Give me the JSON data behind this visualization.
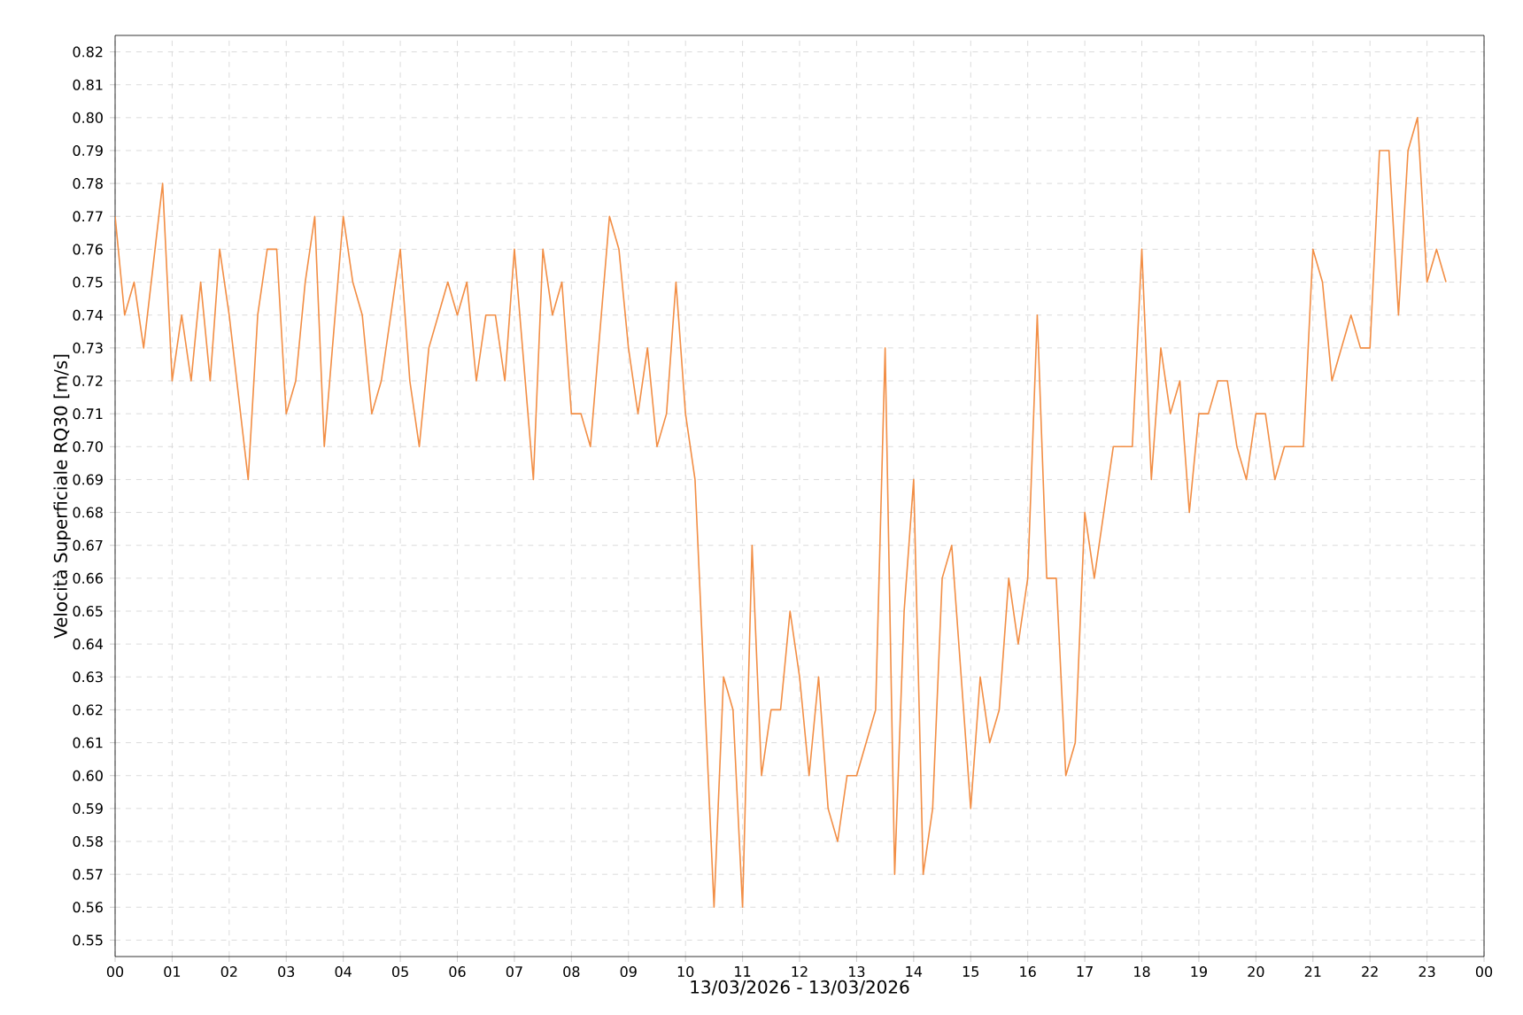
{
  "chart_data": {
    "type": "line",
    "xlabel": "13/03/2026 - 13/03/2026",
    "ylabel": "Velocità Superficiale RQ30 [m/s]",
    "xlim": [
      0,
      24
    ],
    "ylim": [
      0.545,
      0.825
    ],
    "xticks": [
      {
        "value": 0,
        "label": "00"
      },
      {
        "value": 1,
        "label": "01"
      },
      {
        "value": 2,
        "label": "02"
      },
      {
        "value": 3,
        "label": "03"
      },
      {
        "value": 4,
        "label": "04"
      },
      {
        "value": 5,
        "label": "05"
      },
      {
        "value": 6,
        "label": "06"
      },
      {
        "value": 7,
        "label": "07"
      },
      {
        "value": 8,
        "label": "08"
      },
      {
        "value": 9,
        "label": "09"
      },
      {
        "value": 10,
        "label": "10"
      },
      {
        "value": 11,
        "label": "11"
      },
      {
        "value": 12,
        "label": "12"
      },
      {
        "value": 13,
        "label": "13"
      },
      {
        "value": 14,
        "label": "14"
      },
      {
        "value": 15,
        "label": "15"
      },
      {
        "value": 16,
        "label": "16"
      },
      {
        "value": 17,
        "label": "17"
      },
      {
        "value": 18,
        "label": "18"
      },
      {
        "value": 19,
        "label": "19"
      },
      {
        "value": 20,
        "label": "20"
      },
      {
        "value": 21,
        "label": "21"
      },
      {
        "value": 22,
        "label": "22"
      },
      {
        "value": 23,
        "label": "23"
      },
      {
        "value": 24,
        "label": "00"
      }
    ],
    "yticks": [
      0.55,
      0.56,
      0.57,
      0.58,
      0.59,
      {
        "value": 0.6,
        "label": "0.60"
      },
      0.61,
      0.62,
      0.63,
      0.64,
      0.65,
      0.66,
      0.67,
      0.68,
      0.69,
      {
        "value": 0.7,
        "label": "0.70"
      },
      0.71,
      0.72,
      0.73,
      0.74,
      0.75,
      0.76,
      0.77,
      0.78,
      0.79,
      {
        "value": 0.8,
        "label": "0.80"
      },
      0.81,
      0.82
    ],
    "grid": true,
    "marker": "none",
    "line_style": "solid",
    "series": [
      {
        "color": "#f28e45",
        "x": [
          0,
          0.167,
          0.333,
          0.5,
          0.833,
          1,
          1.167,
          1.333,
          1.5,
          1.667,
          1.833,
          2,
          2.333,
          2.5,
          2.667,
          2.833,
          3,
          3.167,
          3.333,
          3.5,
          3.667,
          4,
          4.167,
          4.333,
          4.5,
          4.667,
          5,
          5.167,
          5.333,
          5.5,
          5.667,
          5.833,
          6,
          6.167,
          6.333,
          6.5,
          6.667,
          6.833,
          7,
          7.333,
          7.5,
          7.667,
          7.833,
          8,
          8.167,
          8.333,
          8.667,
          8.833,
          9,
          9.167,
          9.333,
          9.5,
          9.667,
          9.833,
          10,
          10.167,
          10.5,
          10.667,
          10.833,
          11,
          11.167,
          11.333,
          11.5,
          11.667,
          11.833,
          12,
          12.167,
          12.333,
          12.5,
          12.667,
          12.833,
          13,
          13.333,
          13.5,
          13.667,
          13.833,
          14,
          14.167,
          14.333,
          14.5,
          14.667,
          15,
          15.167,
          15.333,
          15.5,
          15.667,
          15.833,
          16,
          16.167,
          16.333,
          16.5,
          16.667,
          16.833,
          17,
          17.167,
          17.5,
          17.667,
          17.833,
          18,
          18.167,
          18.333,
          18.5,
          18.667,
          18.833,
          19,
          19.167,
          19.333,
          19.5,
          19.667,
          19.833,
          20,
          20.167,
          20.333,
          20.5,
          20.667,
          20.833,
          21,
          21.167,
          21.333,
          21.667,
          21.833,
          22,
          22.167,
          22.333,
          22.5,
          22.667,
          22.833,
          23,
          23.167,
          23.333
        ],
        "values": [
          0.77,
          0.74,
          0.75,
          0.73,
          0.78,
          0.72,
          0.74,
          0.72,
          0.75,
          0.72,
          0.76,
          0.74,
          0.69,
          0.74,
          0.76,
          0.76,
          0.71,
          0.72,
          0.75,
          0.77,
          0.7,
          0.77,
          0.75,
          0.74,
          0.71,
          0.72,
          0.76,
          0.72,
          0.7,
          0.73,
          0.74,
          0.75,
          0.74,
          0.75,
          0.72,
          0.74,
          0.74,
          0.72,
          0.76,
          0.69,
          0.76,
          0.74,
          0.75,
          0.71,
          0.71,
          0.7,
          0.77,
          0.76,
          0.73,
          0.71,
          0.73,
          0.7,
          0.71,
          0.75,
          0.71,
          0.69,
          0.56,
          0.63,
          0.62,
          0.56,
          0.67,
          0.6,
          0.62,
          0.62,
          0.65,
          0.63,
          0.6,
          0.63,
          0.59,
          0.58,
          0.6,
          0.6,
          0.62,
          0.73,
          0.57,
          0.65,
          0.69,
          0.57,
          0.59,
          0.66,
          0.67,
          0.59,
          0.63,
          0.61,
          0.62,
          0.66,
          0.64,
          0.66,
          0.74,
          0.66,
          0.66,
          0.6,
          0.61,
          0.68,
          0.66,
          0.7,
          0.7,
          0.7,
          0.76,
          0.69,
          0.73,
          0.71,
          0.72,
          0.68,
          0.71,
          0.71,
          0.72,
          0.72,
          0.7,
          0.69,
          0.71,
          0.71,
          0.69,
          0.7,
          0.7,
          0.7,
          0.76,
          0.75,
          0.72,
          0.74,
          0.73,
          0.73,
          0.79,
          0.79,
          0.74,
          0.79,
          0.8,
          0.75,
          0.76,
          0.75
        ]
      }
    ]
  }
}
